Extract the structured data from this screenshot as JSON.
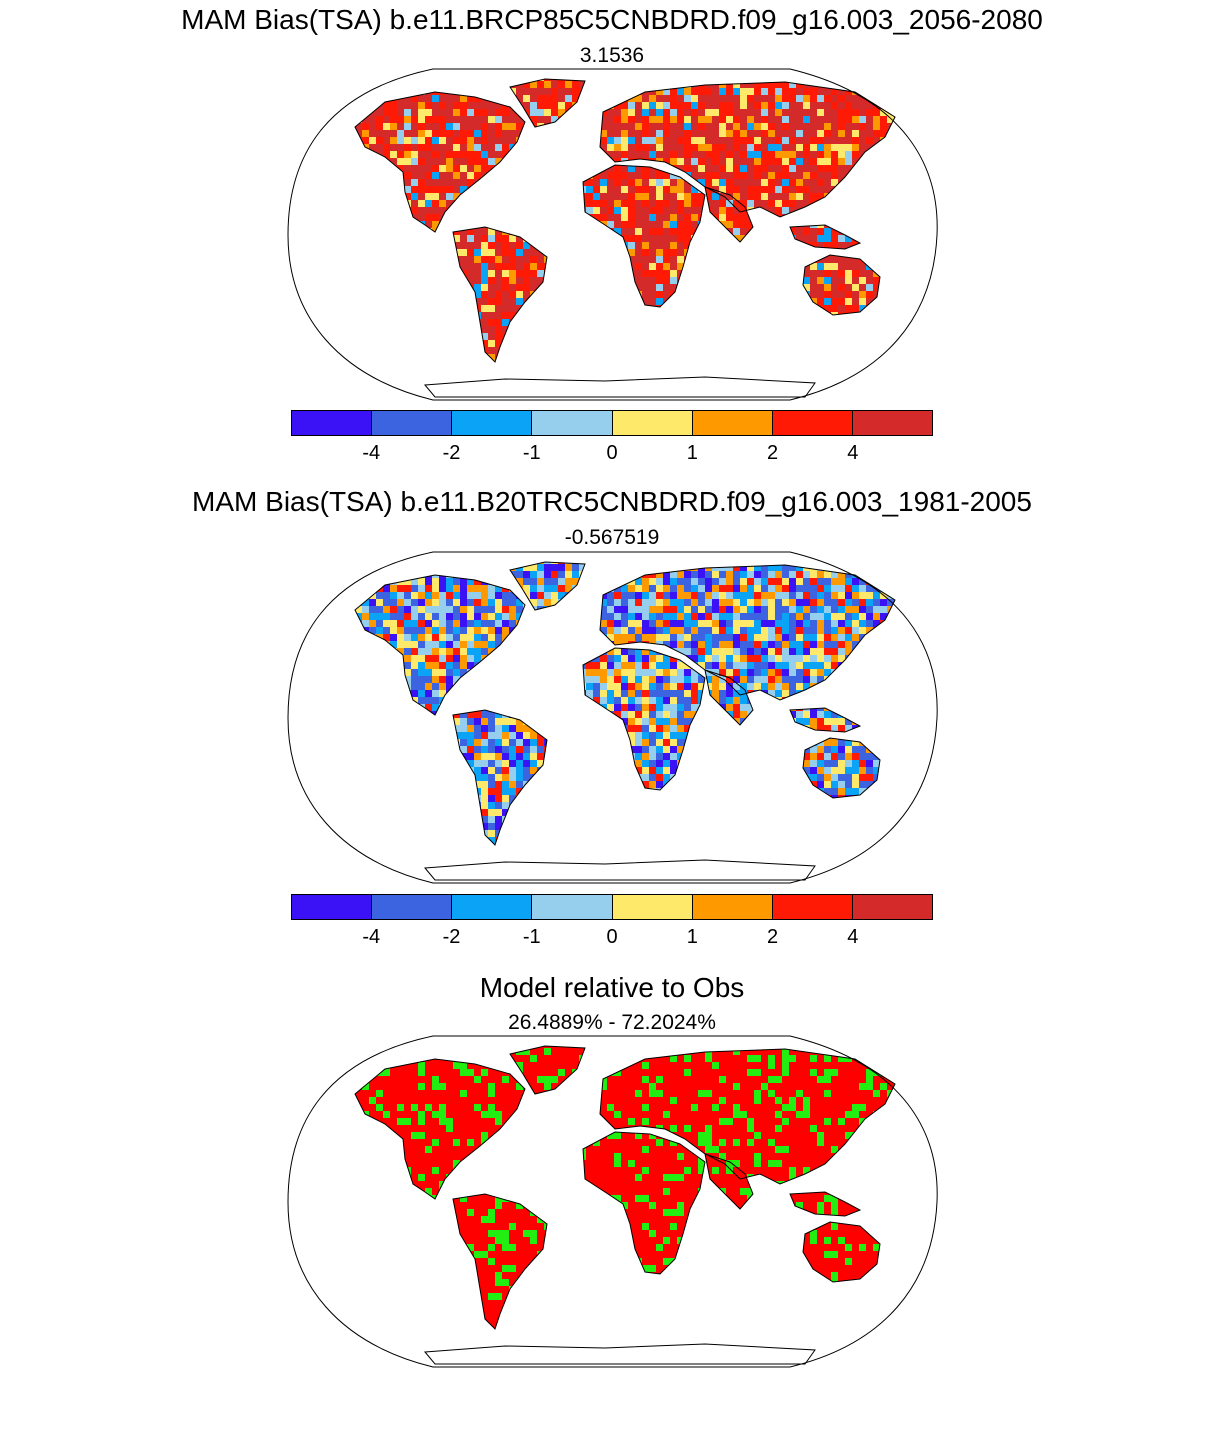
{
  "panels": [
    {
      "title": "MAM Bias(TSA) b.e11.BRCP85C5CNBDRD.f09_g16.003_2056-2080",
      "subtitle": "3.1536",
      "style": "warm"
    },
    {
      "title": "MAM Bias(TSA) b.e11.B20TRC5CNBDRD.f09_g16.003_1981-2005",
      "subtitle": "-0.567519",
      "style": "mixed"
    },
    {
      "title": "Model relative to Obs",
      "subtitle": "26.4889% - 72.2024%",
      "style": "binary"
    }
  ],
  "colorbar": {
    "colors": [
      "#3a12f5",
      "#3d64e0",
      "#0aa3f5",
      "#96cfee",
      "#ffe96b",
      "#ff9900",
      "#ff1a05",
      "#d42a29"
    ],
    "labels": [
      "-4",
      "-2",
      "-1",
      "0",
      "1",
      "2",
      "4"
    ]
  },
  "binary_colors": {
    "better": "#ff0000",
    "worse": "#22ee11"
  }
}
